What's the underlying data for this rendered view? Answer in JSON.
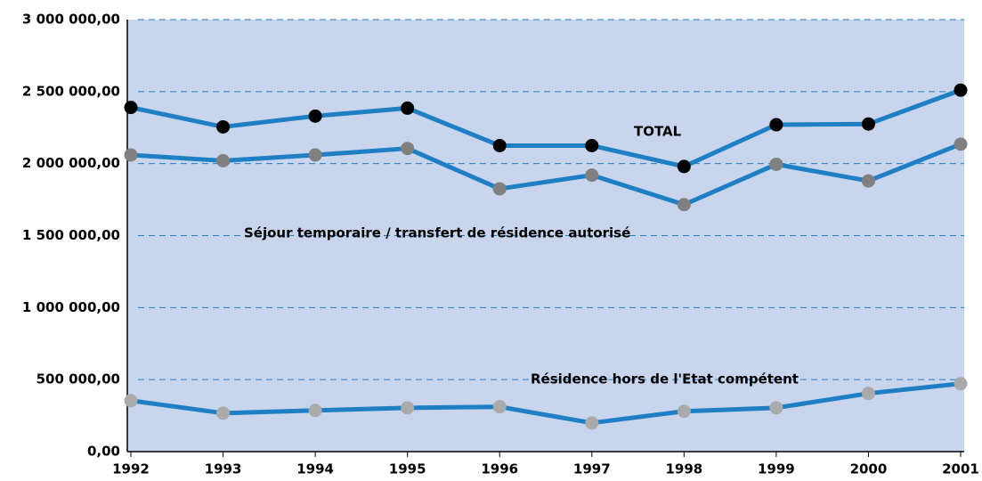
{
  "chart_data": {
    "type": "line",
    "categories": [
      "1992",
      "1993",
      "1994",
      "1995",
      "1996",
      "1997",
      "1998",
      "1999",
      "2000",
      "2001"
    ],
    "series": [
      {
        "name": "TOTAL",
        "color": "#1f7fc4",
        "marker_color": "#000000",
        "values": [
          2390000,
          2255000,
          2330000,
          2385000,
          2125000,
          2125000,
          1980000,
          2270000,
          2275000,
          2510000
        ]
      },
      {
        "name": "Séjour temporaire / transfert de résidence autorisé",
        "color": "#1f7fc4",
        "marker_color": "#808080",
        "values": [
          2060000,
          2020000,
          2060000,
          2105000,
          1825000,
          1920000,
          1715000,
          1995000,
          1880000,
          2135000
        ]
      },
      {
        "name": "Résidence hors de l'Etat compétent",
        "color": "#1f7fc4",
        "marker_color": "#aaaaaa",
        "values": [
          354000,
          267000,
          286000,
          304000,
          311000,
          199000,
          280000,
          304000,
          404000,
          472000
        ]
      }
    ],
    "ylim": [
      0,
      3000000
    ],
    "yticks": [
      {
        "value": 0,
        "label": "0,00"
      },
      {
        "value": 500000,
        "label": "500 000,00"
      },
      {
        "value": 1000000,
        "label": "1 000 000,00"
      },
      {
        "value": 1500000,
        "label": "1 500 000,00"
      },
      {
        "value": 2000000,
        "label": "2 000 000,00"
      },
      {
        "value": 2500000,
        "label": "2 500 000,00"
      },
      {
        "value": 3000000,
        "label": "3 000 000,00"
      }
    ],
    "grid": true
  }
}
